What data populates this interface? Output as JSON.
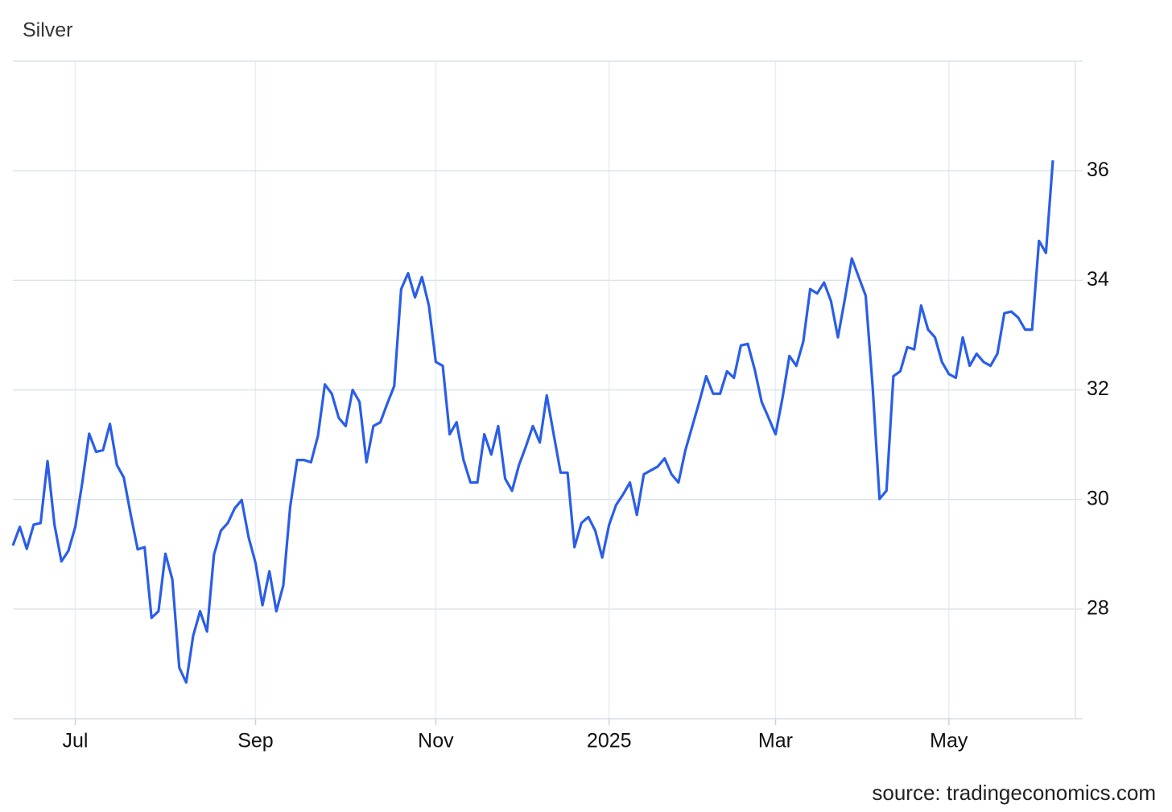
{
  "chart_data": {
    "type": "line",
    "title": "Silver",
    "source": "source: tradingeconomics.com",
    "categories": [
      null,
      null,
      null,
      null,
      null,
      null,
      null,
      null,
      null,
      "Jul",
      null,
      null,
      null,
      null,
      null,
      null,
      null,
      null,
      null,
      null,
      null,
      null,
      null,
      null,
      null,
      null,
      null,
      null,
      null,
      null,
      null,
      null,
      null,
      null,
      null,
      "Sep",
      null,
      null,
      null,
      null,
      null,
      null,
      null,
      null,
      null,
      null,
      null,
      null,
      null,
      null,
      null,
      null,
      null,
      null,
      null,
      null,
      null,
      null,
      null,
      null,
      null,
      "Nov",
      null,
      null,
      null,
      null,
      null,
      null,
      null,
      null,
      null,
      null,
      null,
      null,
      null,
      null,
      null,
      null,
      null,
      null,
      null,
      null,
      null,
      null,
      null,
      null,
      "2025",
      null,
      null,
      null,
      null,
      null,
      null,
      null,
      null,
      null,
      null,
      null,
      null,
      null,
      null,
      null,
      null,
      null,
      null,
      null,
      null,
      null,
      null,
      null,
      "Mar",
      null,
      null,
      null,
      null,
      null,
      null,
      null,
      null,
      null,
      null,
      null,
      null,
      null,
      null,
      null,
      null,
      null,
      null,
      null,
      null,
      null,
      null,
      null,
      null,
      "May",
      null,
      null,
      null,
      null,
      null,
      null,
      null,
      null,
      null,
      null,
      null,
      null,
      null,
      null,
      null
    ],
    "series": [
      {
        "name": "Silver",
        "color": "#2a5ee8",
        "values": [
          29.16,
          29.5,
          29.1,
          29.54,
          29.57,
          30.7,
          29.54,
          28.87,
          29.06,
          29.5,
          30.3,
          31.2,
          30.87,
          30.9,
          31.38,
          30.63,
          30.4,
          29.72,
          29.09,
          29.13,
          27.84,
          27.96,
          29.01,
          28.54,
          26.93,
          26.66,
          27.51,
          27.96,
          27.59,
          28.99,
          29.43,
          29.57,
          29.84,
          29.99,
          29.31,
          28.84,
          28.07,
          28.69,
          27.96,
          28.43,
          29.87,
          30.72,
          30.72,
          30.68,
          31.16,
          32.1,
          31.93,
          31.49,
          31.34,
          32.0,
          31.78,
          30.68,
          31.34,
          31.41,
          31.75,
          32.07,
          33.84,
          34.13,
          33.69,
          34.06,
          33.54,
          32.51,
          32.44,
          31.19,
          31.41,
          30.72,
          30.31,
          30.31,
          31.19,
          30.82,
          31.34,
          30.38,
          30.16,
          30.63,
          30.97,
          31.34,
          31.04,
          31.9,
          31.19,
          30.49,
          30.49,
          29.13,
          29.57,
          29.68,
          29.43,
          28.94,
          29.54,
          29.9,
          30.09,
          30.31,
          29.72,
          30.46,
          30.53,
          30.6,
          30.75,
          30.46,
          30.31,
          30.9,
          31.34,
          31.78,
          32.25,
          31.93,
          31.93,
          32.34,
          32.22,
          32.81,
          32.84,
          32.37,
          31.78,
          31.49,
          31.19,
          31.85,
          32.62,
          32.44,
          32.88,
          33.84,
          33.76,
          33.96,
          33.62,
          32.96,
          33.66,
          34.4,
          34.06,
          33.72,
          32.07,
          30.01,
          30.16,
          32.25,
          32.34,
          32.78,
          32.74,
          33.54,
          33.1,
          32.96,
          32.51,
          32.29,
          32.22,
          32.96,
          32.44,
          32.66,
          32.51,
          32.44,
          32.66,
          33.4,
          33.43,
          33.32,
          33.1,
          33.1,
          34.72,
          34.5,
          36.19
        ]
      }
    ],
    "ylim": [
      26,
      38
    ],
    "yticks": [
      28,
      30,
      32,
      34,
      36
    ],
    "grid": true
  }
}
